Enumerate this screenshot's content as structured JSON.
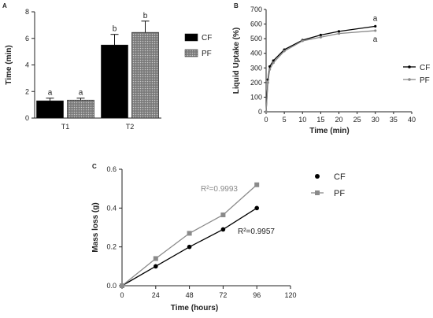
{
  "colors": {
    "CF": "#000000",
    "PF": "#8a8a8a",
    "pf_fill": "#b0b0b0",
    "axis": "#222222"
  },
  "chart_data": [
    {
      "panel": "A",
      "type": "bar",
      "ylabel": "Time (min)",
      "xlabel": "",
      "ylim": [
        0,
        8
      ],
      "yticks": [
        0,
        2,
        4,
        6,
        8
      ],
      "categories": [
        "T1",
        "T2"
      ],
      "series": [
        {
          "name": "CF",
          "values": [
            1.3,
            5.5
          ],
          "errors": [
            0.2,
            0.8
          ],
          "letters": [
            "a",
            "b"
          ]
        },
        {
          "name": "PF",
          "values": [
            1.35,
            6.45
          ],
          "errors": [
            0.15,
            0.85
          ],
          "letters": [
            "a",
            "b"
          ]
        }
      ],
      "legend": "right"
    },
    {
      "panel": "B",
      "type": "line",
      "ylabel": "Liquid Uptake (%)",
      "xlabel": "Time  (min)",
      "xlim": [
        0,
        40
      ],
      "ylim": [
        0,
        700
      ],
      "xticks": [
        0,
        5,
        10,
        15,
        20,
        25,
        30,
        35,
        40
      ],
      "yticks": [
        0,
        100,
        200,
        300,
        400,
        500,
        600,
        700
      ],
      "series": [
        {
          "name": "CF",
          "x": [
            0,
            0.5,
            1,
            2,
            5,
            10,
            15,
            20,
            30
          ],
          "y": [
            0,
            220,
            310,
            350,
            425,
            490,
            525,
            550,
            585
          ],
          "letter": "a"
        },
        {
          "name": "PF",
          "x": [
            0,
            0.5,
            1,
            2,
            5,
            10,
            15,
            20,
            30
          ],
          "y": [
            0,
            200,
            290,
            335,
            415,
            485,
            510,
            535,
            555
          ],
          "letter": "a"
        }
      ],
      "legend": "right"
    },
    {
      "panel": "C",
      "type": "scatter",
      "ylabel": "Mass loss (g)",
      "xlabel": "Time (hours)",
      "xlim": [
        0,
        120
      ],
      "ylim": [
        0,
        0.6
      ],
      "xticks": [
        0,
        24,
        48,
        72,
        96,
        120
      ],
      "yticks": [
        0,
        0.2,
        0.4,
        0.6
      ],
      "ytick_labels": [
        "0.0",
        "0.2",
        "0.4",
        "0.6"
      ],
      "series": [
        {
          "name": "CF",
          "x": [
            0,
            24,
            48,
            72,
            96
          ],
          "y": [
            0,
            0.1,
            0.2,
            0.29,
            0.4
          ],
          "r2": "R²=0.9957"
        },
        {
          "name": "PF",
          "x": [
            0,
            24,
            48,
            72,
            96
          ],
          "y": [
            0,
            0.14,
            0.27,
            0.365,
            0.52
          ],
          "r2": "R²=0.9993"
        }
      ],
      "legend": "right"
    }
  ]
}
